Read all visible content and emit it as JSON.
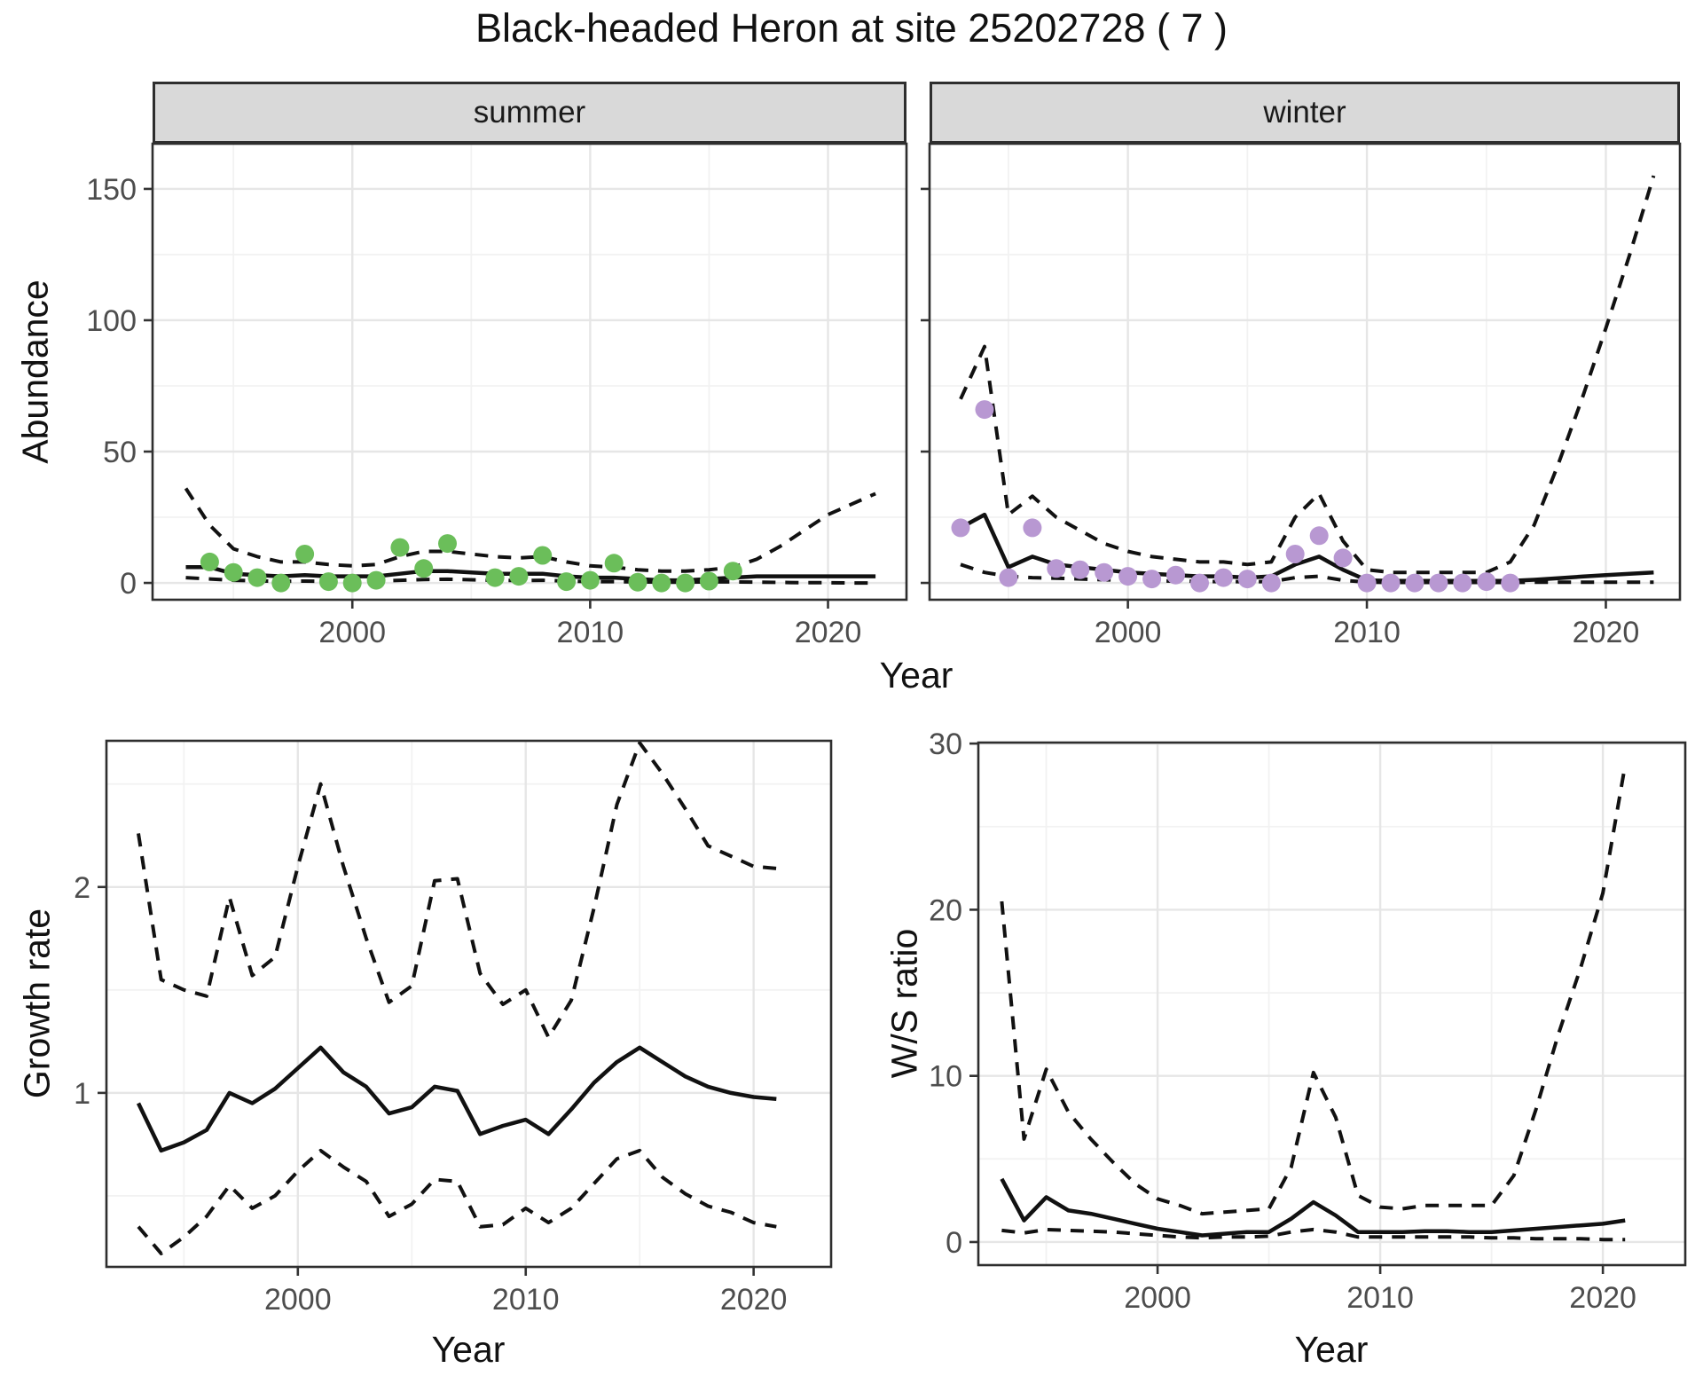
{
  "title": "Black-headed Heron at site 25202728 ( 7 )",
  "facets": {
    "summer": "summer",
    "winter": "winter"
  },
  "axis_titles": {
    "abundance": "Abundance",
    "year_top": "Year",
    "growth_rate": "Growth rate",
    "year_growth": "Year",
    "ws_ratio": "W/S ratio",
    "year_ws": "Year"
  },
  "colors": {
    "summer_points": "#6bbe5a",
    "winter_points": "#b898d2",
    "line": "#111111",
    "axis_text": "#4d4d4d",
    "tick_mark": "#333333",
    "panel_border": "#2e2e2e",
    "grid_major": "#e6e6e6",
    "grid_minor": "#f2f2f2",
    "strip_bg": "#d9d9d9"
  },
  "chart_data": [
    {
      "id": "summer",
      "type": "line",
      "title": "summer",
      "xlabel": "Year",
      "ylabel": "Abundance",
      "legend_position": "none",
      "grid": true,
      "xlim": [
        1991.6,
        2023.3
      ],
      "ylim": [
        -6.4,
        167.2
      ],
      "x_ticks": [
        2000,
        2010,
        2020
      ],
      "x_tick_labels": [
        "2000",
        "2010",
        "2020"
      ],
      "x_minor": [
        1995,
        2005,
        2015
      ],
      "y_ticks": [
        0,
        50,
        100,
        150
      ],
      "y_tick_labels": [
        "0",
        "50",
        "100",
        "150"
      ],
      "y_minor": [
        25,
        75,
        125
      ],
      "years": [
        1993,
        1994,
        1995,
        1996,
        1997,
        1998,
        1999,
        2000,
        2001,
        2002,
        2003,
        2004,
        2005,
        2006,
        2007,
        2008,
        2009,
        2010,
        2011,
        2012,
        2013,
        2014,
        2015,
        2016,
        2017,
        2018,
        2019,
        2020,
        2021,
        2022
      ],
      "series": [
        {
          "name": "fit",
          "style": "solid",
          "values": [
            6,
            6,
            3.5,
            3,
            2.5,
            3,
            2.5,
            2.5,
            2.5,
            3.5,
            4.5,
            4.5,
            4,
            3.5,
            3.5,
            3.5,
            2.5,
            2,
            2,
            1.5,
            1,
            1,
            1.5,
            2,
            2.5,
            2.5,
            2.5,
            2.5,
            2.5,
            2.5
          ]
        },
        {
          "name": "upper_ci",
          "style": "dashed",
          "values": [
            36,
            22,
            13,
            10,
            8,
            8,
            7,
            6.5,
            7,
            10,
            12,
            12,
            11,
            10,
            9.5,
            10,
            8,
            6.5,
            6,
            5,
            4.5,
            4.5,
            5,
            6,
            9,
            14,
            20,
            26,
            30,
            34
          ]
        },
        {
          "name": "lower_ci",
          "style": "dashed",
          "values": [
            2,
            1.5,
            1,
            0.8,
            0.6,
            0.7,
            0.6,
            0.6,
            0.7,
            1,
            1.3,
            1.4,
            1.2,
            1,
            0.9,
            1,
            0.7,
            0.5,
            0.5,
            0.4,
            0.3,
            0.3,
            0.4,
            0.4,
            0.3,
            0.2,
            0.1,
            0.1,
            0,
            0
          ]
        }
      ],
      "obs_years": [
        1994,
        1995,
        1996,
        1997,
        1998,
        1999,
        2000,
        2001,
        2002,
        2003,
        2004,
        2006,
        2007,
        2008,
        2009,
        2010,
        2011,
        2012,
        2013,
        2014,
        2015,
        2016
      ],
      "obs_values": [
        8,
        4,
        2,
        0,
        11,
        0.5,
        0,
        1,
        13.5,
        5.5,
        15,
        2,
        2.5,
        10.5,
        0.5,
        1,
        7.5,
        0.3,
        0,
        0,
        0.7,
        4.5
      ],
      "point_color": "#6bbe5a"
    },
    {
      "id": "winter",
      "type": "line",
      "title": "winter",
      "xlabel": "Year",
      "ylabel": "",
      "legend_position": "none",
      "grid": true,
      "xlim": [
        1991.7,
        2023.1
      ],
      "ylim": [
        -6.4,
        167.2
      ],
      "x_ticks": [
        2000,
        2010,
        2020
      ],
      "x_tick_labels": [
        "2000",
        "2010",
        "2020"
      ],
      "x_minor": [
        1995,
        2005,
        2015
      ],
      "y_ticks": [
        0,
        50,
        100,
        150
      ],
      "y_tick_labels": [],
      "y_minor": [
        25,
        75,
        125
      ],
      "years": [
        1993,
        1994,
        1995,
        1996,
        1997,
        1998,
        1999,
        2000,
        2001,
        2002,
        2003,
        2004,
        2005,
        2006,
        2007,
        2008,
        2009,
        2010,
        2011,
        2012,
        2013,
        2014,
        2015,
        2016,
        2017,
        2018,
        2019,
        2020,
        2021,
        2022
      ],
      "series": [
        {
          "name": "fit",
          "style": "solid",
          "values": [
            21,
            26,
            6,
            10,
            7,
            6,
            5,
            4,
            3.5,
            3,
            2.5,
            2.5,
            2,
            2.5,
            7,
            10,
            5,
            1,
            0.8,
            0.8,
            0.8,
            0.8,
            0.8,
            0.8,
            1.2,
            1.8,
            2.4,
            3,
            3.5,
            4
          ]
        },
        {
          "name": "upper_ci",
          "style": "dashed",
          "values": [
            70,
            90,
            26,
            33,
            25,
            20,
            15,
            12,
            10,
            9,
            8,
            8,
            7,
            8,
            25,
            34,
            16,
            5,
            4,
            4,
            4,
            4,
            4,
            8,
            22,
            45,
            70,
            97,
            125,
            155
          ]
        },
        {
          "name": "lower_ci",
          "style": "dashed",
          "values": [
            7,
            4,
            2.5,
            2,
            1.8,
            1.5,
            1.2,
            1,
            0.8,
            0.7,
            0.6,
            0.5,
            0.5,
            0.5,
            2,
            2.5,
            1,
            0.3,
            0.2,
            0.2,
            0.2,
            0.2,
            0.2,
            0.2,
            0.3,
            0.3,
            0.3,
            0.3,
            0.3,
            0.3
          ]
        }
      ],
      "obs_years": [
        1993,
        1994,
        1995,
        1996,
        1997,
        1998,
        1999,
        2000,
        2001,
        2002,
        2003,
        2004,
        2005,
        2006,
        2007,
        2008,
        2009,
        2010,
        2011,
        2012,
        2013,
        2014,
        2015,
        2016
      ],
      "obs_values": [
        21,
        66,
        2,
        21,
        5.5,
        5,
        4,
        2.5,
        1.5,
        3,
        0,
        2,
        1.5,
        0,
        11,
        18,
        9.5,
        0,
        0,
        0,
        0,
        0,
        0.5,
        0
      ],
      "point_color": "#b898d2"
    },
    {
      "id": "growth",
      "type": "line",
      "title": "",
      "xlabel": "Year",
      "ylabel": "Growth rate",
      "legend_position": "none",
      "grid": true,
      "xlim": [
        1991.6,
        2023.4
      ],
      "ylim": [
        0.155,
        2.71
      ],
      "x_ticks": [
        2000,
        2010,
        2020
      ],
      "x_tick_labels": [
        "2000",
        "2010",
        "2020"
      ],
      "x_minor": [
        1995,
        2005,
        2015
      ],
      "y_ticks": [
        1,
        2
      ],
      "y_tick_labels": [
        "1",
        "2"
      ],
      "y_minor": [
        0.5,
        1.5,
        2.5
      ],
      "years": [
        1993,
        1994,
        1995,
        1996,
        1997,
        1998,
        1999,
        2000,
        2001,
        2002,
        2003,
        2004,
        2005,
        2006,
        2007,
        2008,
        2009,
        2010,
        2011,
        2012,
        2013,
        2014,
        2015,
        2016,
        2017,
        2018,
        2019,
        2020,
        2021
      ],
      "series": [
        {
          "name": "fit",
          "style": "solid",
          "values": [
            0.95,
            0.72,
            0.76,
            0.82,
            1.0,
            0.95,
            1.02,
            1.12,
            1.22,
            1.1,
            1.03,
            0.9,
            0.93,
            1.03,
            1.01,
            0.8,
            0.84,
            0.87,
            0.8,
            0.92,
            1.05,
            1.15,
            1.22,
            1.15,
            1.08,
            1.03,
            1.0,
            0.98,
            0.97
          ]
        },
        {
          "name": "upper_ci",
          "style": "dashed",
          "values": [
            2.26,
            1.55,
            1.5,
            1.47,
            1.95,
            1.57,
            1.66,
            2.1,
            2.5,
            2.1,
            1.75,
            1.44,
            1.52,
            2.03,
            2.04,
            1.58,
            1.43,
            1.5,
            1.27,
            1.45,
            1.9,
            2.4,
            2.7,
            2.55,
            2.38,
            2.2,
            2.15,
            2.1,
            2.09
          ]
        },
        {
          "name": "lower_ci",
          "style": "dashed",
          "values": [
            0.35,
            0.22,
            0.3,
            0.4,
            0.55,
            0.44,
            0.5,
            0.62,
            0.72,
            0.64,
            0.57,
            0.4,
            0.46,
            0.58,
            0.57,
            0.35,
            0.36,
            0.44,
            0.37,
            0.44,
            0.56,
            0.68,
            0.72,
            0.59,
            0.51,
            0.45,
            0.42,
            0.37,
            0.35
          ]
        }
      ]
    },
    {
      "id": "ws",
      "type": "line",
      "title": "",
      "xlabel": "Year",
      "ylabel": "W/S ratio",
      "legend_position": "none",
      "grid": true,
      "xlim": [
        1991.95,
        2023.7
      ],
      "ylim": [
        -1.39,
        30.06
      ],
      "x_ticks": [
        2000,
        2010,
        2020
      ],
      "x_tick_labels": [
        "2000",
        "2010",
        "2020"
      ],
      "x_minor": [
        1995,
        2005,
        2015
      ],
      "y_ticks": [
        0,
        10,
        20,
        30
      ],
      "y_tick_labels": [
        "0",
        "10",
        "20",
        "30"
      ],
      "y_minor": [
        5,
        15,
        25
      ],
      "years": [
        1993,
        1994,
        1995,
        1996,
        1997,
        1998,
        1999,
        2000,
        2001,
        2002,
        2003,
        2004,
        2005,
        2006,
        2007,
        2008,
        2009,
        2010,
        2011,
        2012,
        2013,
        2014,
        2015,
        2016,
        2017,
        2018,
        2019,
        2020,
        2021
      ],
      "series": [
        {
          "name": "fit",
          "style": "solid",
          "values": [
            3.8,
            1.3,
            2.7,
            1.9,
            1.7,
            1.4,
            1.1,
            0.8,
            0.6,
            0.4,
            0.5,
            0.6,
            0.6,
            1.4,
            2.4,
            1.6,
            0.6,
            0.6,
            0.6,
            0.65,
            0.65,
            0.6,
            0.6,
            0.7,
            0.8,
            0.9,
            1.0,
            1.1,
            1.3
          ]
        },
        {
          "name": "upper_ci",
          "style": "dashed",
          "values": [
            20.5,
            6.2,
            10.4,
            7.8,
            6.2,
            4.8,
            3.5,
            2.6,
            2.2,
            1.7,
            1.8,
            1.9,
            2.0,
            4.5,
            10.2,
            7.5,
            2.8,
            2.1,
            2.0,
            2.2,
            2.2,
            2.2,
            2.2,
            4.0,
            8.0,
            12.5,
            16.5,
            21.0,
            28.7
          ]
        },
        {
          "name": "lower_ci",
          "style": "dashed",
          "values": [
            0.7,
            0.55,
            0.75,
            0.7,
            0.65,
            0.6,
            0.5,
            0.4,
            0.3,
            0.25,
            0.3,
            0.3,
            0.35,
            0.6,
            0.75,
            0.6,
            0.3,
            0.3,
            0.3,
            0.3,
            0.3,
            0.3,
            0.25,
            0.25,
            0.2,
            0.2,
            0.2,
            0.15,
            0.15
          ]
        }
      ]
    }
  ]
}
